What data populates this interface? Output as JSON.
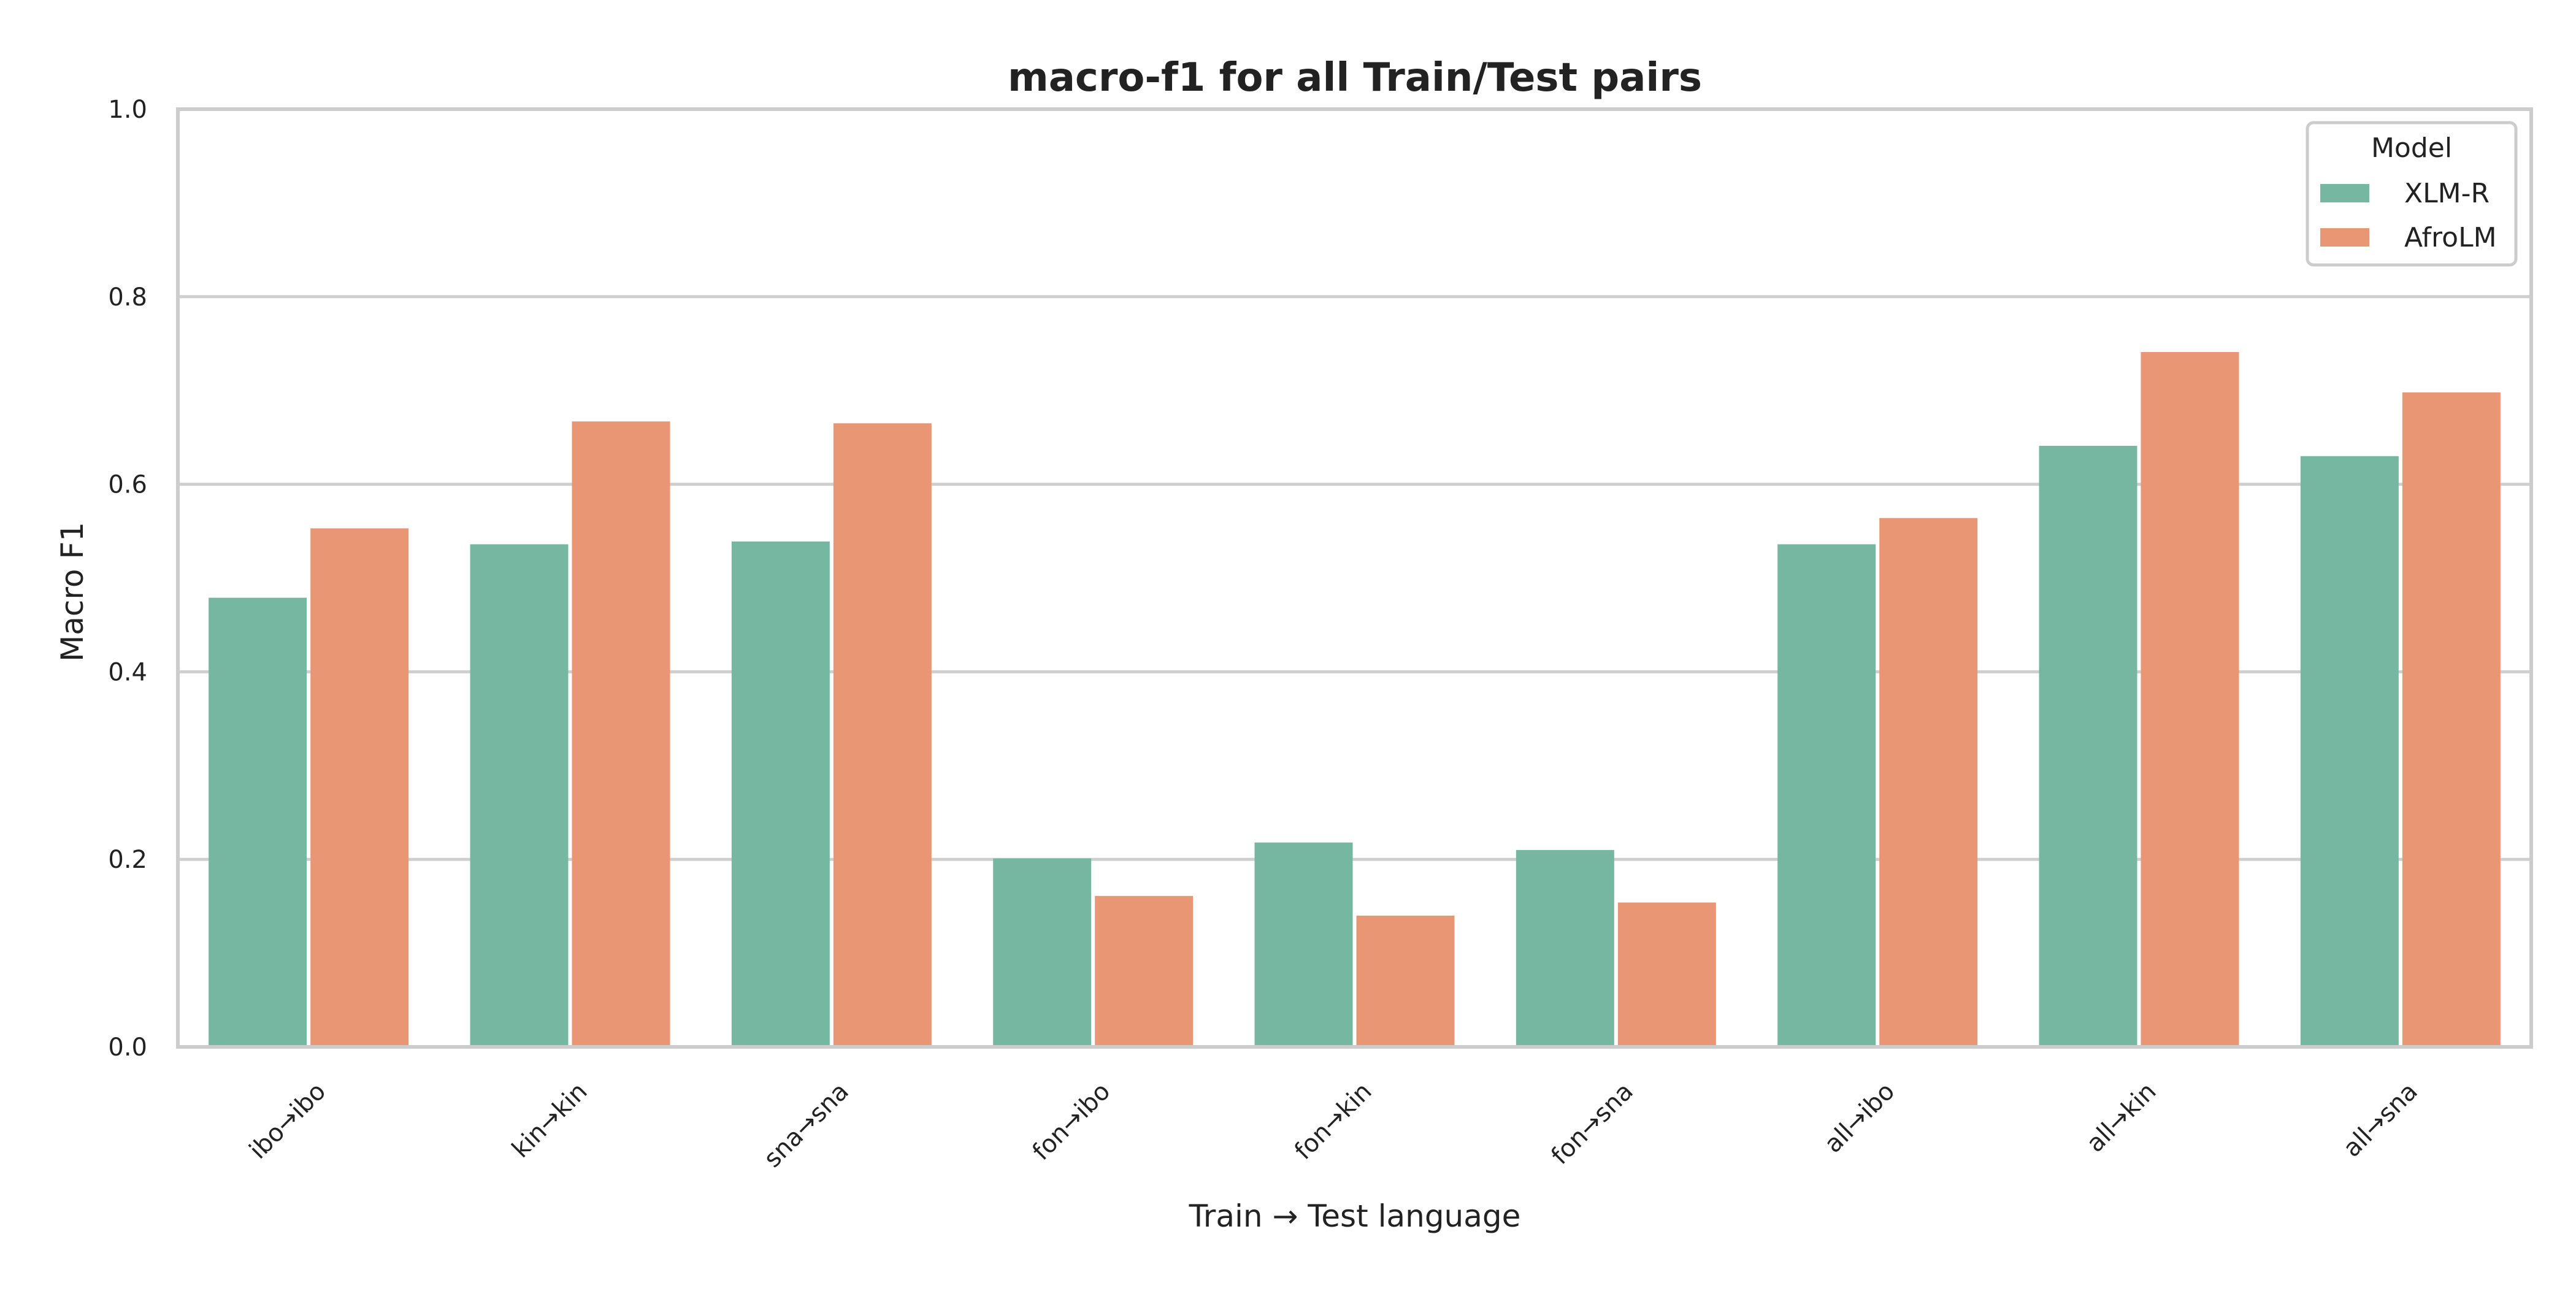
{
  "chart_data": {
    "type": "bar",
    "title": "macro-f1 for all Train/Test pairs",
    "xlabel": "Train → Test language",
    "ylabel": "Macro F1",
    "ylim": [
      0,
      1.0
    ],
    "yticks": [
      "0.0",
      "0.2",
      "0.4",
      "0.6",
      "0.8",
      "1.0"
    ],
    "grid": true,
    "categories": [
      "ibo→ibo",
      "kin→kin",
      "sna→sna",
      "fon→ibo",
      "fon→kin",
      "fon→sna",
      "all→ibo",
      "all→kin",
      "all→sna"
    ],
    "series": [
      {
        "name": "XLM-R",
        "color": "#76b7a2",
        "values": [
          0.479,
          0.536,
          0.539,
          0.201,
          0.218,
          0.21,
          0.536,
          0.641,
          0.63
        ]
      },
      {
        "name": "AfroLM",
        "color": "#e99675",
        "values": [
          0.553,
          0.667,
          0.665,
          0.161,
          0.14,
          0.154,
          0.564,
          0.741,
          0.698
        ]
      }
    ],
    "legend": {
      "title": "Model",
      "placement": "top-right"
    }
  },
  "colors": {
    "grid": "#cfcfcf",
    "frame": "#cccccc",
    "text": "#222222"
  }
}
